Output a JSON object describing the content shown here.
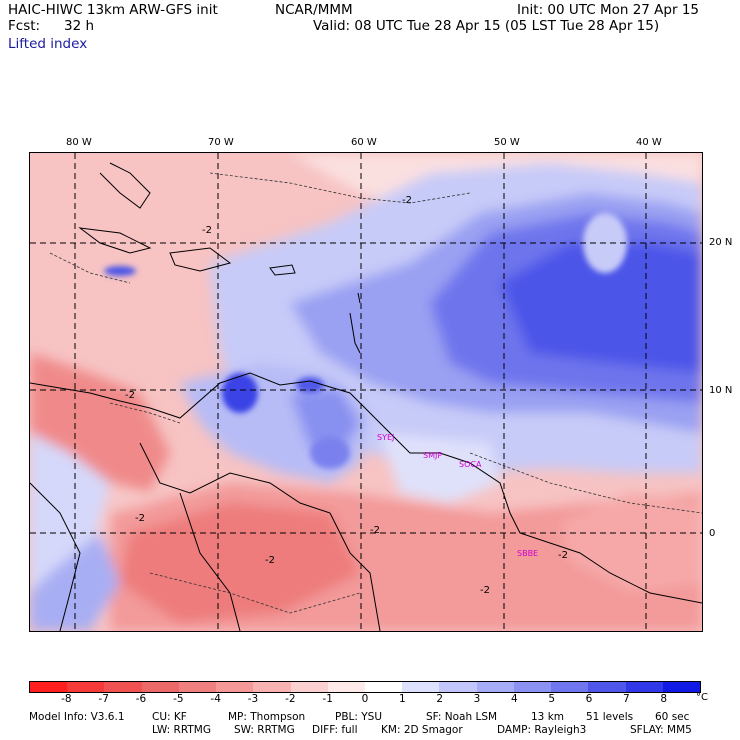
{
  "header": {
    "model": "HAIC-HIWC 13km ARW-GFS init",
    "org": "NCAR/MMM",
    "init": "Init: 00 UTC Mon 27 Apr 15",
    "fcst_label": "Fcst:",
    "fcst_value": "32 h",
    "valid": "Valid: 08 UTC Tue 28 Apr 15 (05 LST Tue 28 Apr 15)",
    "field": "Lifted index"
  },
  "map": {
    "lon_labels": [
      "80 W",
      "70 W",
      "60 W",
      "50 W",
      "40 W"
    ],
    "lat_labels": [
      "20 N",
      "10 N",
      "0"
    ],
    "contour_labels": [
      "-2",
      "-2",
      "-2",
      "-2",
      "-2",
      "-2",
      "-2",
      "-2"
    ],
    "stations": [
      "SYEJ",
      "SMJP",
      "SOCA",
      "SBBE"
    ]
  },
  "colorbar": {
    "labels": [
      "-8",
      "-7",
      "-6",
      "-5",
      "-4",
      "-3",
      "-2",
      "-1",
      "0",
      "1",
      "2",
      "3",
      "4",
      "5",
      "6",
      "7",
      "8"
    ],
    "unit": "°C",
    "colors": [
      "#ff1f1f",
      "#f63a3a",
      "#f05252",
      "#ec6969",
      "#f08080",
      "#f49898",
      "#f8b2b2",
      "#fbd0d0",
      "#ffeaea",
      "#ffffff",
      "#dde0ff",
      "#c2c6fa",
      "#a6acf6",
      "#8c92f2",
      "#6f76ee",
      "#4f57ea",
      "#3038e8",
      "#101ae4"
    ]
  },
  "footer": {
    "line1": [
      "Model Info: V3.6.1",
      "CU: KF",
      "MP: Thompson",
      "PBL: YSU",
      "SF: Noah LSM",
      "13 km",
      "51 levels",
      "60 sec"
    ],
    "line2": [
      "LW: RRTMG",
      "SW: RRTMG",
      "DIFF: full",
      "KM: 2D Smagor",
      "DAMP: Rayleigh3",
      "SFLAY: MM5"
    ]
  }
}
